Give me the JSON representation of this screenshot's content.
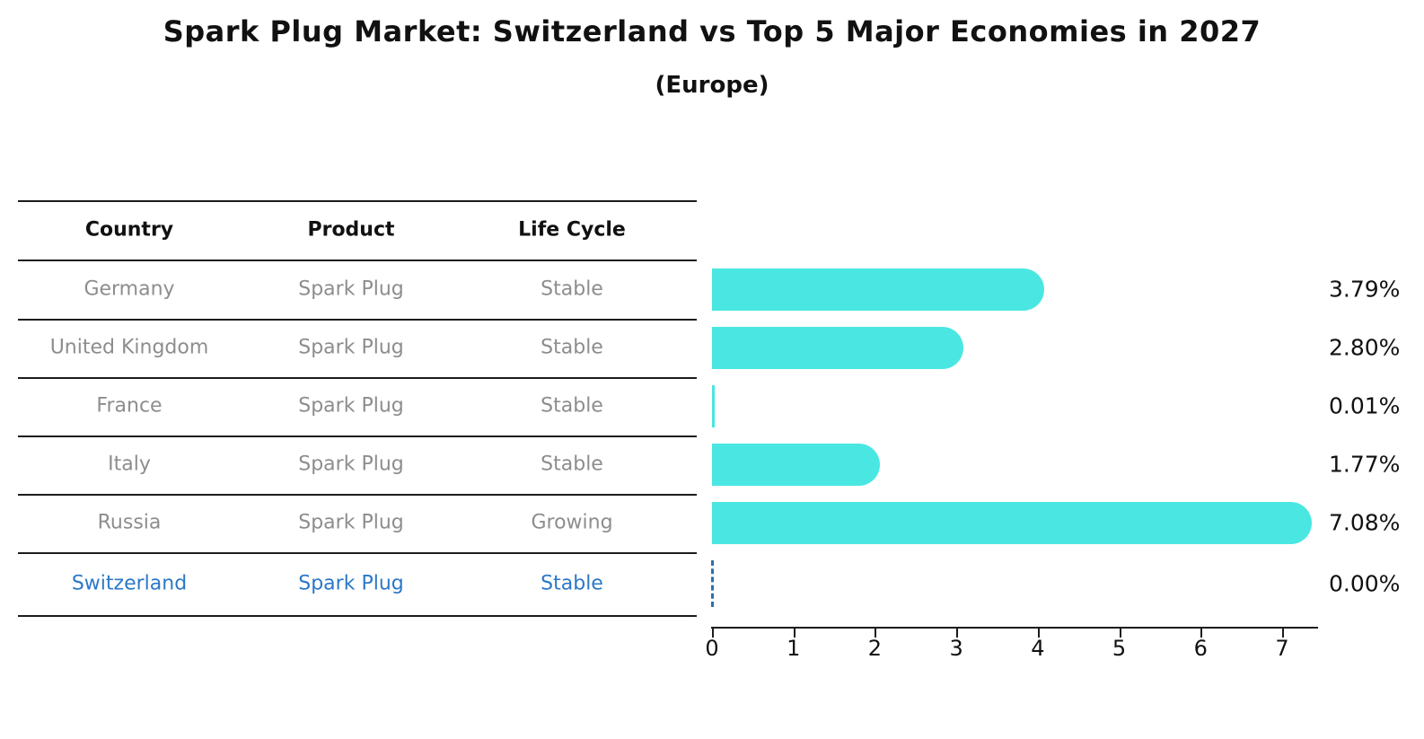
{
  "title": "Spark Plug Market: Switzerland vs Top 5 Major Economies in 2027",
  "subtitle": "(Europe)",
  "colors": {
    "bar": "#4AE7E2",
    "highlight_text": "#2b78c8",
    "row_text": "#8d8d8d",
    "header_text": "#111111",
    "rule": "#1c1c1c",
    "zero_marker": "#2f6fad"
  },
  "table": {
    "headers": [
      "Country",
      "Product",
      "Life Cycle"
    ],
    "rows": [
      {
        "country": "Germany",
        "product": "Spark Plug",
        "life_cycle": "Stable",
        "value": 3.79,
        "value_label": "3.79%",
        "highlight": false
      },
      {
        "country": "United Kingdom",
        "product": "Spark Plug",
        "life_cycle": "Stable",
        "value": 2.8,
        "value_label": "2.80%",
        "highlight": false
      },
      {
        "country": "France",
        "product": "Spark Plug",
        "life_cycle": "Stable",
        "value": 0.01,
        "value_label": "0.01%",
        "highlight": false
      },
      {
        "country": "Italy",
        "product": "Spark Plug",
        "life_cycle": "Stable",
        "value": 1.77,
        "value_label": "1.77%",
        "highlight": false
      },
      {
        "country": "Russia",
        "product": "Spark Plug",
        "life_cycle": "Growing",
        "value": 7.08,
        "value_label": "7.08%",
        "highlight": false
      },
      {
        "country": "Switzerland",
        "product": "Spark Plug",
        "life_cycle": "Stable",
        "value": 0.0,
        "value_label": "0.00%",
        "highlight": true
      }
    ]
  },
  "chart_data": {
    "type": "bar",
    "orientation": "horizontal",
    "title": "Spark Plug Market: Switzerland vs Top 5 Major Economies in 2027 (Europe)",
    "categories": [
      "Germany",
      "United Kingdom",
      "France",
      "Italy",
      "Russia",
      "Switzerland"
    ],
    "values": [
      3.79,
      2.8,
      0.01,
      1.77,
      7.08,
      0.0
    ],
    "value_labels": [
      "3.79%",
      "2.80%",
      "0.01%",
      "1.77%",
      "7.08%",
      "0.00%"
    ],
    "xlabel": "",
    "ylabel": "",
    "xlim": [
      0,
      7.44
    ],
    "xticks": [
      0,
      1,
      2,
      3,
      4,
      5,
      6,
      7
    ],
    "grid": false,
    "legend": false,
    "bar_color": "#4AE7E2",
    "highlight_category": "Switzerland",
    "highlight_marker": "dashed-zero-line"
  }
}
